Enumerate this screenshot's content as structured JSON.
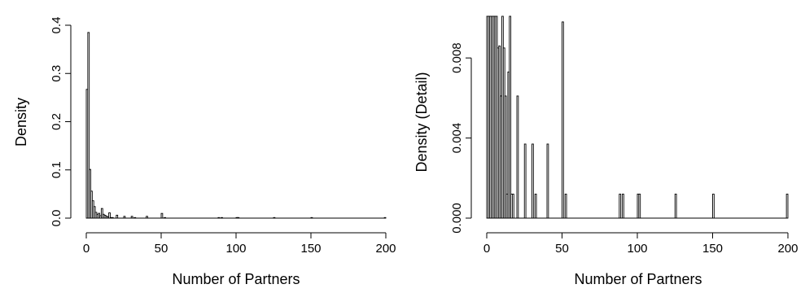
{
  "chart_data": [
    {
      "type": "bar",
      "subtype": "histogram",
      "xlabel": "Number of Partners",
      "ylabel": "Density",
      "xlim": [
        0,
        200
      ],
      "ylim": [
        0,
        0.4
      ],
      "xticks": [
        0,
        50,
        100,
        150,
        200
      ],
      "yticks": [
        0,
        0.1,
        0.2,
        0.3,
        0.4
      ],
      "x_tick_labels": [
        "0",
        "50",
        "100",
        "150",
        "200"
      ],
      "y_tick_labels": [
        "0.0",
        "0.1",
        "0.2",
        "0.3",
        "0.4"
      ],
      "bin_width": 1,
      "grid": false,
      "bins": [
        {
          "x": 0,
          "density": 0.267
        },
        {
          "x": 1,
          "density": 0.385
        },
        {
          "x": 2,
          "density": 0.101
        },
        {
          "x": 3,
          "density": 0.056
        },
        {
          "x": 4,
          "density": 0.036
        },
        {
          "x": 5,
          "density": 0.024
        },
        {
          "x": 6,
          "density": 0.012
        },
        {
          "x": 7,
          "density": 0.008
        },
        {
          "x": 8,
          "density": 0.01
        },
        {
          "x": 9,
          "density": 0.005
        },
        {
          "x": 10,
          "density": 0.02
        },
        {
          "x": 11,
          "density": 0.008
        },
        {
          "x": 12,
          "density": 0.006
        },
        {
          "x": 13,
          "density": 0.004
        },
        {
          "x": 14,
          "density": 0.003
        },
        {
          "x": 15,
          "density": 0.011
        },
        {
          "x": 16,
          "density": 0.0012
        },
        {
          "x": 17,
          "density": 0.0012
        },
        {
          "x": 20,
          "density": 0.0061
        },
        {
          "x": 25,
          "density": 0.0037
        },
        {
          "x": 30,
          "density": 0.0037
        },
        {
          "x": 32,
          "density": 0.0012
        },
        {
          "x": 40,
          "density": 0.0037
        },
        {
          "x": 50,
          "density": 0.0098
        },
        {
          "x": 52,
          "density": 0.0012
        },
        {
          "x": 88,
          "density": 0.0012
        },
        {
          "x": 90,
          "density": 0.0012
        },
        {
          "x": 100,
          "density": 0.0012
        },
        {
          "x": 101,
          "density": 0.0012
        },
        {
          "x": 125,
          "density": 0.0012
        },
        {
          "x": 150,
          "density": 0.0012
        },
        {
          "x": 199,
          "density": 0.0012
        }
      ]
    },
    {
      "type": "bar",
      "subtype": "histogram",
      "xlabel": "Number of Partners",
      "ylabel": "Density (Detail)",
      "xlim": [
        0,
        200
      ],
      "ylim": [
        0,
        0.01
      ],
      "clipped_at_top": true,
      "xticks": [
        0,
        50,
        100,
        150,
        200
      ],
      "yticks": [
        0,
        0.004,
        0.008
      ],
      "x_tick_labels": [
        "0",
        "50",
        "100",
        "150",
        "200"
      ],
      "y_tick_labels": [
        "0.000",
        "0.004",
        "0.008"
      ],
      "bin_width": 1,
      "grid": false,
      "bins": [
        {
          "x": 0,
          "density": 0.267
        },
        {
          "x": 1,
          "density": 0.385
        },
        {
          "x": 2,
          "density": 0.101
        },
        {
          "x": 3,
          "density": 0.056
        },
        {
          "x": 4,
          "density": 0.036
        },
        {
          "x": 5,
          "density": 0.024
        },
        {
          "x": 6,
          "density": 0.012
        },
        {
          "x": 7,
          "density": 0.0085
        },
        {
          "x": 8,
          "density": 0.0086
        },
        {
          "x": 9,
          "density": 0.0061
        },
        {
          "x": 10,
          "density": 0.02
        },
        {
          "x": 11,
          "density": 0.0085
        },
        {
          "x": 12,
          "density": 0.0061
        },
        {
          "x": 13,
          "density": 0.0012
        },
        {
          "x": 14,
          "density": 0.0073
        },
        {
          "x": 15,
          "density": 0.011
        },
        {
          "x": 16,
          "density": 0.0012
        },
        {
          "x": 17,
          "density": 0.0012
        },
        {
          "x": 20,
          "density": 0.0061
        },
        {
          "x": 25,
          "density": 0.0037
        },
        {
          "x": 30,
          "density": 0.0037
        },
        {
          "x": 32,
          "density": 0.0012
        },
        {
          "x": 40,
          "density": 0.0037
        },
        {
          "x": 50,
          "density": 0.0098
        },
        {
          "x": 52,
          "density": 0.0012
        },
        {
          "x": 88,
          "density": 0.0012
        },
        {
          "x": 90,
          "density": 0.0012
        },
        {
          "x": 100,
          "density": 0.0012
        },
        {
          "x": 101,
          "density": 0.0012
        },
        {
          "x": 125,
          "density": 0.0012
        },
        {
          "x": 150,
          "density": 0.0012
        },
        {
          "x": 199,
          "density": 0.0012
        }
      ]
    }
  ]
}
